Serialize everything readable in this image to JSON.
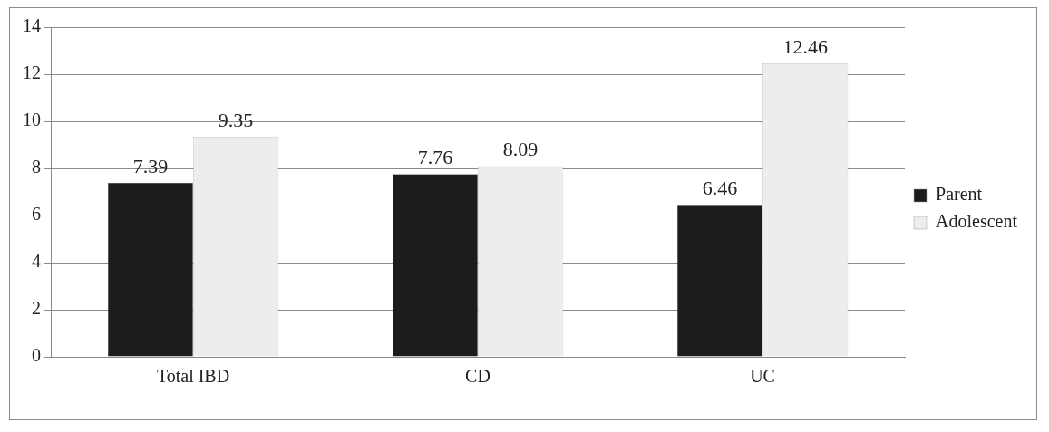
{
  "chart_data": {
    "type": "bar",
    "categories": [
      "Total IBD",
      "CD",
      "UC"
    ],
    "series": [
      {
        "name": "Parent",
        "color": "#1c1c1c",
        "values": [
          7.39,
          7.76,
          6.46
        ]
      },
      {
        "name": "Adolescent",
        "color": "#ededed",
        "values": [
          9.35,
          8.09,
          12.46
        ]
      }
    ],
    "ylim": [
      0,
      14
    ],
    "yticks": [
      0,
      2,
      4,
      6,
      8,
      10,
      12,
      14
    ],
    "grid": "y",
    "legend": "right",
    "data_labels": true
  }
}
